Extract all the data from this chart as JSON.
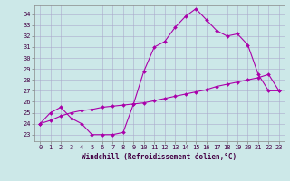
{
  "xlabel": "Windchill (Refroidissement éolien,°C)",
  "bg_color": "#cce8e8",
  "line_color": "#aa00aa",
  "grid_color": "#aaaacc",
  "xlim": [
    -0.5,
    23.5
  ],
  "ylim": [
    22.4,
    34.8
  ],
  "xticks": [
    0,
    1,
    2,
    3,
    4,
    5,
    6,
    7,
    8,
    9,
    10,
    11,
    12,
    13,
    14,
    15,
    16,
    17,
    18,
    19,
    20,
    21,
    22,
    23
  ],
  "yticks": [
    23,
    24,
    25,
    26,
    27,
    28,
    29,
    30,
    31,
    32,
    33,
    34
  ],
  "line1_x": [
    0,
    1,
    2,
    3,
    4,
    5,
    6,
    7,
    8,
    9,
    10,
    11,
    12,
    13,
    14,
    15,
    16,
    17,
    18,
    19,
    20,
    21,
    22,
    23
  ],
  "line1_y": [
    24.0,
    25.0,
    25.5,
    24.5,
    24.0,
    23.0,
    23.0,
    23.0,
    23.2,
    25.8,
    28.8,
    31.0,
    31.5,
    32.8,
    33.8,
    34.5,
    33.5,
    32.5,
    32.0,
    32.2,
    31.2,
    28.5,
    27.0,
    27.0
  ],
  "line2_x": [
    0,
    1,
    2,
    3,
    4,
    5,
    6,
    7,
    8,
    9,
    10,
    11,
    12,
    13,
    14,
    15,
    16,
    17,
    18,
    19,
    20,
    21,
    22,
    23
  ],
  "line2_y": [
    24.0,
    24.3,
    24.7,
    25.0,
    25.2,
    25.3,
    25.5,
    25.6,
    25.7,
    25.8,
    25.9,
    26.1,
    26.3,
    26.5,
    26.7,
    26.9,
    27.1,
    27.4,
    27.6,
    27.8,
    28.0,
    28.2,
    28.5,
    27.0
  ],
  "markersize": 2.0,
  "linewidth": 0.8,
  "xlabel_fontsize": 5.5,
  "tick_fontsize": 5.0
}
